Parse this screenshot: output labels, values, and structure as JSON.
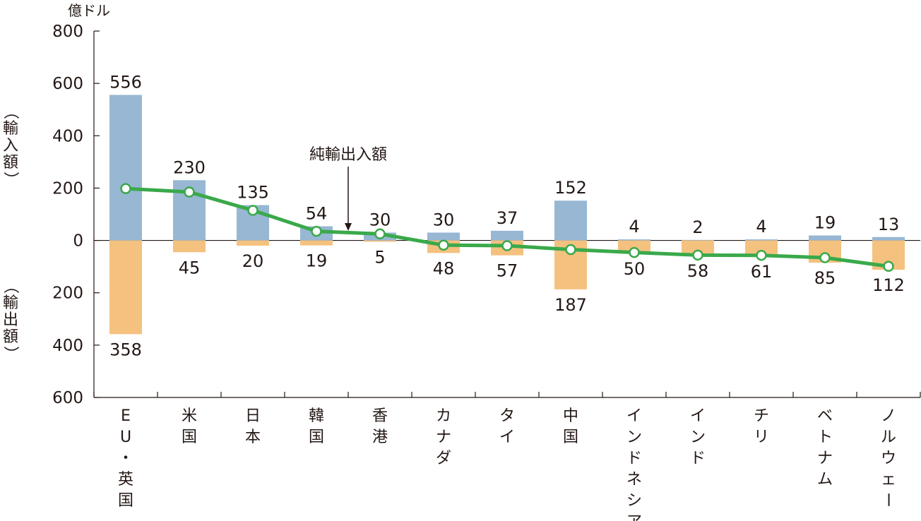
{
  "chart_data": {
    "type": "bar",
    "unit_label": "億ドル",
    "ylabel_import": "（輸入額）",
    "ylabel_export": "（輸出額）",
    "y_ticks": [
      {
        "value": 800,
        "label": "800"
      },
      {
        "value": 600,
        "label": "600"
      },
      {
        "value": 400,
        "label": "400"
      },
      {
        "value": 200,
        "label": "200"
      },
      {
        "value": 0,
        "label": "0"
      },
      {
        "value": -200,
        "label": "200"
      },
      {
        "value": -400,
        "label": "400"
      },
      {
        "value": -600,
        "label": "600"
      }
    ],
    "ylim": [
      -600,
      800
    ],
    "categories": [
      "EU・英国",
      "米国",
      "日本",
      "韓国",
      "香港",
      "カナダ",
      "タイ",
      "中国",
      "インドネシア",
      "インド",
      "チリ",
      "ベトナム",
      "ノルウェー"
    ],
    "series": [
      {
        "name": "輸入額",
        "color": "#97b7d3",
        "values": [
          556,
          230,
          135,
          54,
          30,
          30,
          37,
          152,
          4,
          2,
          4,
          19,
          13
        ]
      },
      {
        "name": "輸出額",
        "color": "#f4c17f",
        "values": [
          358,
          45,
          20,
          19,
          5,
          48,
          57,
          187,
          50,
          58,
          61,
          85,
          112
        ]
      },
      {
        "name": "純輸出入額",
        "color": "#3aa94a",
        "values": [
          198,
          185,
          115,
          35,
          25,
          -18,
          -20,
          -35,
          -46,
          -56,
          -57,
          -66,
          -99
        ]
      }
    ],
    "annotation": "純輸出入額"
  }
}
